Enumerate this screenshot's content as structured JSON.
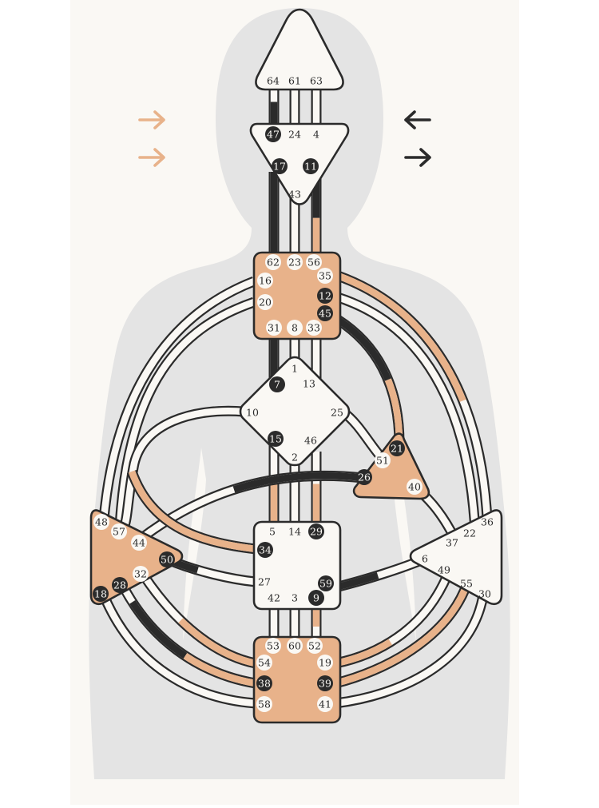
{
  "colors": {
    "paper": "#faf8f4",
    "silhouette": "#e4e4e4",
    "defined": "#e8b28a",
    "dark": "#2b2b2b",
    "undefined": "#faf8f4",
    "outline": "#2b2b2b"
  },
  "arrows": {
    "left_top": {
      "direction": "right",
      "color": "#e8b28a"
    },
    "left_bottom": {
      "direction": "right",
      "color": "#e8b28a"
    },
    "right_top": {
      "direction": "left",
      "color": "#2b2b2b"
    },
    "right_bottom": {
      "direction": "right",
      "color": "#2b2b2b"
    }
  },
  "centers": {
    "head": {
      "defined": false,
      "gates": [
        "64",
        "61",
        "63"
      ]
    },
    "ajna": {
      "defined": false,
      "gates": [
        "47",
        "24",
        "4",
        "17",
        "11",
        "43"
      ]
    },
    "throat": {
      "defined": true,
      "gates": [
        "62",
        "23",
        "56",
        "16",
        "35",
        "20",
        "12",
        "45",
        "31",
        "8",
        "33"
      ]
    },
    "g_center": {
      "defined": false,
      "gates": [
        "1",
        "13",
        "7",
        "10",
        "25",
        "15",
        "46",
        "2"
      ]
    },
    "heart": {
      "defined": true,
      "gates": [
        "21",
        "51",
        "26",
        "40"
      ]
    },
    "spleen": {
      "defined": true,
      "gates": [
        "48",
        "57",
        "44",
        "50",
        "32",
        "28",
        "18"
      ]
    },
    "sacral": {
      "defined": false,
      "gates": [
        "5",
        "14",
        "29",
        "34",
        "27",
        "59",
        "42",
        "3",
        "9"
      ]
    },
    "solar_plexus": {
      "defined": false,
      "gates": [
        "36",
        "22",
        "37",
        "6",
        "49",
        "55",
        "30"
      ]
    },
    "root": {
      "defined": true,
      "gates": [
        "53",
        "60",
        "52",
        "54",
        "19",
        "38",
        "39",
        "58",
        "41"
      ]
    }
  },
  "activated_gates": [
    "47",
    "17",
    "11",
    "12",
    "45",
    "7",
    "15",
    "21",
    "26",
    "50",
    "28",
    "18",
    "34",
    "29",
    "59",
    "9",
    "38",
    "39"
  ]
}
